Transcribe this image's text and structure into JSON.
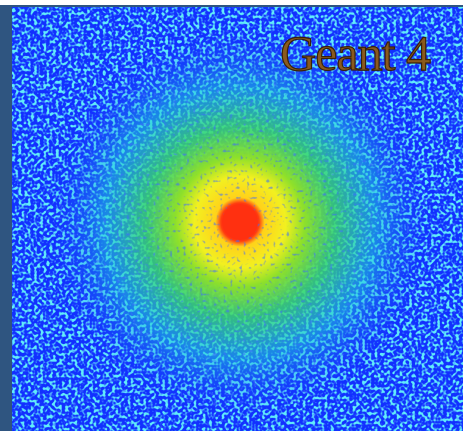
{
  "logo": {
    "text": "Geant 4"
  }
}
